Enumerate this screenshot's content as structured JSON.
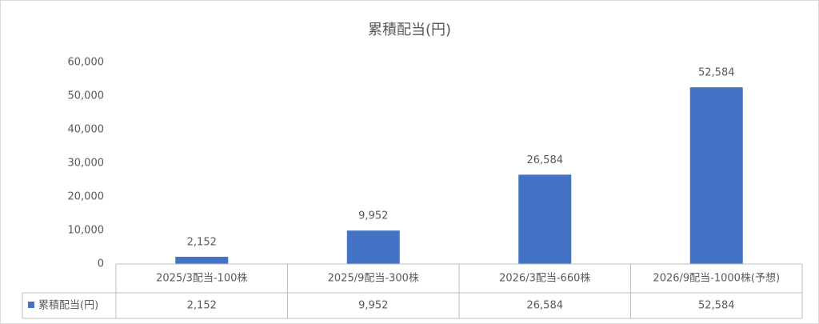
{
  "chart_data": {
    "type": "bar",
    "title": "累積配当(円)",
    "categories": [
      "2025/3配当-100株",
      "2025/9配当-300株",
      "2026/3配当-660株",
      "2026/9配当-1000株(予想)"
    ],
    "series": [
      {
        "name": "累積配当(円)",
        "color": "#4472c4",
        "values": [
          2152,
          9952,
          26584,
          52584
        ],
        "value_labels": [
          "2,152",
          "9,952",
          "26,584",
          "52,584"
        ]
      }
    ],
    "ylim": [
      0,
      60000
    ],
    "yticks": [
      0,
      {
        "value": 10000,
        "label": "10,000"
      },
      {
        "value": 20000,
        "label": "20,000"
      },
      {
        "value": 30000,
        "label": "30,000"
      },
      {
        "value": 40000,
        "label": "40,000"
      },
      {
        "value": 50000,
        "label": "50,000"
      },
      {
        "value": 60000,
        "label": "60,000"
      }
    ],
    "grid": false,
    "data_table": true
  }
}
